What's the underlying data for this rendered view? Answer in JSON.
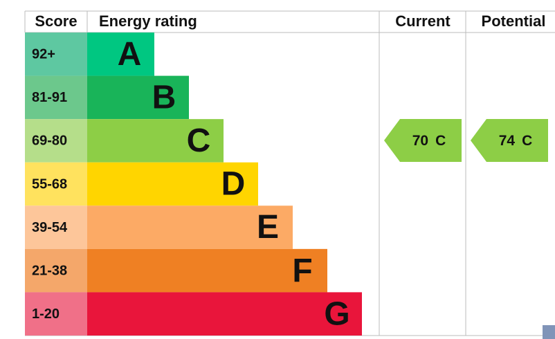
{
  "header": {
    "score": "Score",
    "energy_rating": "Energy rating",
    "current": "Current",
    "potential": "Potential"
  },
  "bands": [
    {
      "score": "92+",
      "letter": "A",
      "color": "#00c781",
      "score_color": "#5ec8a1"
    },
    {
      "score": "81-91",
      "letter": "B",
      "color": "#19b459",
      "score_color": "#6cc88c"
    },
    {
      "score": "69-80",
      "letter": "C",
      "color": "#8dce46",
      "score_color": "#b5de8a"
    },
    {
      "score": "55-68",
      "letter": "D",
      "color": "#ffd500",
      "score_color": "#ffe25e"
    },
    {
      "score": "39-54",
      "letter": "E",
      "color": "#fcaa65",
      "score_color": "#fdc69a"
    },
    {
      "score": "21-38",
      "letter": "F",
      "color": "#ef8023",
      "score_color": "#f4a76a"
    },
    {
      "score": "1-20",
      "letter": "G",
      "color": "#e9153b",
      "score_color": "#f07088"
    }
  ],
  "current": {
    "value": 70,
    "rating": "C",
    "color": "#8dce46"
  },
  "potential": {
    "value": 74,
    "rating": "C",
    "color": "#8dce46"
  }
}
